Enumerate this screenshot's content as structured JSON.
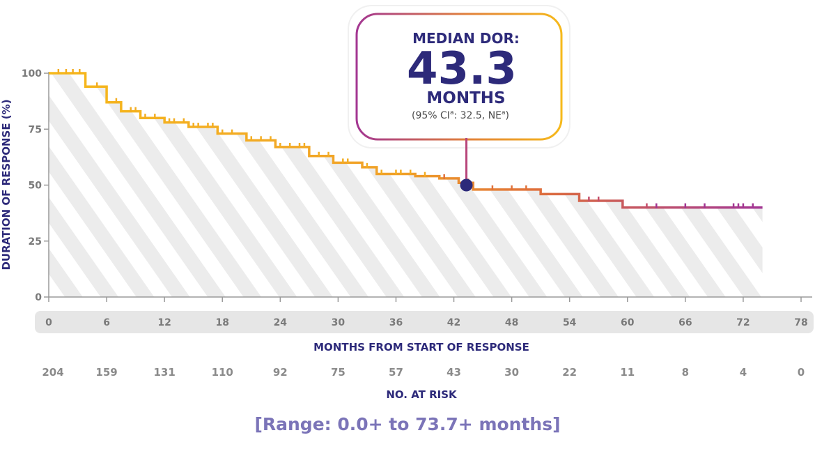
{
  "chart_data": {
    "type": "line",
    "title": "",
    "xlabel": "MONTHS FROM START OF RESPONSE",
    "ylabel": "DURATION OF RESPONSE (%)",
    "xlim": [
      0,
      78
    ],
    "ylim": [
      0,
      100
    ],
    "x_ticks": [
      "0",
      "6",
      "12",
      "18",
      "24",
      "30",
      "36",
      "42",
      "48",
      "54",
      "60",
      "66",
      "72",
      "78"
    ],
    "y_ticks": [
      "0",
      "25",
      "50",
      "75",
      "100"
    ],
    "series": [
      {
        "x": [
          0,
          3.8,
          6,
          7.5,
          9.5,
          12,
          14.5,
          17.5,
          20.5,
          23.5,
          27,
          29.5,
          32.5,
          34,
          38,
          40.5,
          42.5,
          44,
          51,
          55,
          59.5,
          74
        ],
        "y": [
          100,
          94,
          87,
          83,
          80,
          78,
          76,
          73,
          70,
          67,
          63,
          60,
          58,
          55,
          54,
          53,
          51,
          48,
          46,
          43,
          40,
          40
        ]
      }
    ],
    "censor_x": [
      1,
      1.8,
      2.5,
      3.2,
      5,
      7,
      8.5,
      9,
      10,
      11,
      12.5,
      13,
      14,
      15,
      15.5,
      16.5,
      17,
      18,
      19,
      21,
      22,
      23,
      24,
      25,
      26,
      26.5,
      28,
      29,
      30.5,
      31,
      33,
      34.5,
      36,
      36.5,
      37.5,
      39,
      41,
      43.5,
      46,
      48,
      49.5,
      56,
      57,
      62,
      63,
      66,
      68,
      71,
      71.5,
      72,
      73
    ],
    "median": {
      "x": 43.3,
      "y": 50
    },
    "callout": {
      "heading": "MEDIAN DOR:",
      "value": "43.3",
      "unit": "MONTHS",
      "ci_prefix": "(95% CI",
      "ci_sup1": "a",
      "ci_mid": ": 32.5, NE",
      "ci_sup2": "a",
      "ci_suffix": ")"
    },
    "at_risk_label": "NO. AT RISK",
    "at_risk": [
      "204",
      "159",
      "131",
      "110",
      "92",
      "75",
      "57",
      "43",
      "30",
      "22",
      "11",
      "8",
      "4",
      "0"
    ],
    "range_note": "[Range: 0.0+ to 73.7+ months]",
    "grid": false,
    "colors": {
      "start": "#f6b91b",
      "mid": "#e0713a",
      "end": "#a33692",
      "text": "#2d2a7a",
      "marker": "#2d2a7a",
      "range": "#7b74b8",
      "hatch": "#ececec"
    }
  }
}
